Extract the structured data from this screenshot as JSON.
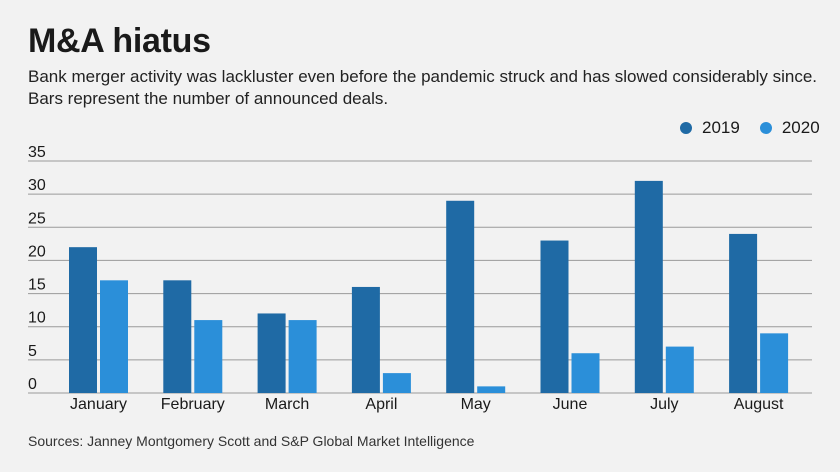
{
  "header": {
    "title": "M&A hiatus",
    "subtitle": "Bank merger activity was lackluster even before the pandemic struck and has slowed considerably since. Bars represent the number of announced deals."
  },
  "footer": {
    "source": "Sources: Janney Montgomery Scott and S&P Global Market Intelligence"
  },
  "colors": {
    "background": "#f2f2f2",
    "series_2019": "#1f6aa5",
    "series_2020": "#2b8fd9",
    "gridline": "#9a9a9a"
  },
  "chart_data": {
    "type": "bar",
    "categories": [
      "January",
      "February",
      "March",
      "April",
      "May",
      "June",
      "July",
      "August"
    ],
    "series": [
      {
        "name": "2019",
        "values": [
          22,
          17,
          12,
          16,
          29,
          23,
          32,
          24
        ]
      },
      {
        "name": "2020",
        "values": [
          17,
          11,
          11,
          3,
          1,
          6,
          7,
          9
        ]
      }
    ],
    "ylim": [
      0,
      35
    ],
    "yticks": [
      0,
      5,
      10,
      15,
      20,
      25,
      30,
      35
    ],
    "grid": true,
    "legend": "top-right"
  }
}
